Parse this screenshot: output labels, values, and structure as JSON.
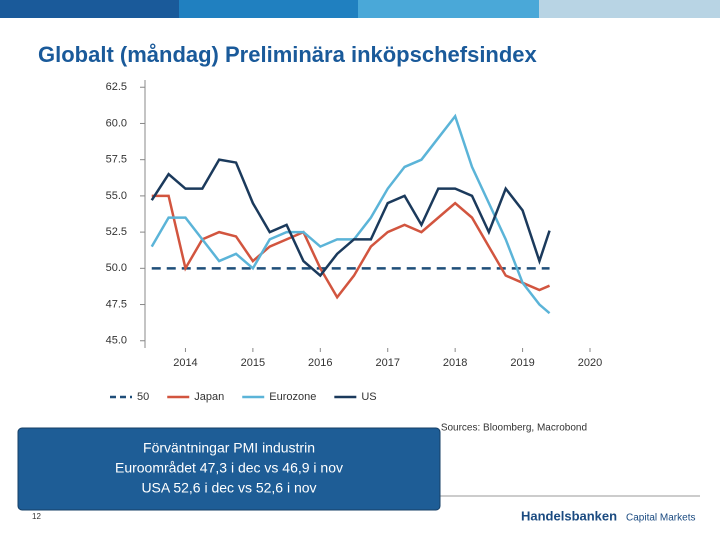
{
  "slide": {
    "title": "Globalt (måndag) Preliminära inköpschefsindex",
    "source": "Sources: Bloomberg, Macrobond",
    "textbox": [
      "Förväntningar PMI industrin",
      "Euroområdet 47,3 i dec vs 46,9 i nov",
      "USA 52,6 i dec vs 52,6 i nov"
    ],
    "page_number": "12",
    "logo": "Handelsbanken",
    "logo_sub": "Capital Markets"
  },
  "chart_data": {
    "type": "line",
    "x": [
      2013.5,
      2013.75,
      2014,
      2014.25,
      2014.5,
      2014.75,
      2015,
      2015.25,
      2015.5,
      2015.75,
      2016,
      2016.25,
      2016.5,
      2016.75,
      2017,
      2017.25,
      2017.5,
      2017.75,
      2018,
      2018.25,
      2018.5,
      2018.75,
      2019,
      2019.25,
      2019.4
    ],
    "xlim": [
      2013.4,
      2020.0
    ],
    "xticks": [
      2014,
      2015,
      2016,
      2017,
      2018,
      2019,
      2020
    ],
    "ylim": [
      44.5,
      63
    ],
    "yticks": [
      {
        "value": 45,
        "label": "45.0"
      },
      47.5,
      {
        "value": 50,
        "label": "50.0"
      },
      52.5,
      {
        "value": 55,
        "label": "55.0"
      },
      57.5,
      {
        "value": 60,
        "label": "60.0"
      },
      62.5
    ],
    "series": [
      {
        "name": "50",
        "color": "#1f4e79",
        "dashed": true,
        "values": [
          50,
          50,
          50,
          50,
          50,
          50,
          50,
          50,
          50,
          50,
          50,
          50,
          50,
          50,
          50,
          50,
          50,
          50,
          50,
          50,
          50,
          50,
          50,
          50,
          50
        ]
      },
      {
        "name": "Japan",
        "color": "#d2553f",
        "values": [
          55,
          55,
          50,
          52,
          52.5,
          52.2,
          50.5,
          51.5,
          52,
          52.5,
          50,
          48,
          49.5,
          51.5,
          52.5,
          53,
          52.5,
          53.5,
          54.5,
          53.5,
          51.5,
          49.5,
          49,
          48.5,
          48.8
        ]
      },
      {
        "name": "Eurozone",
        "color": "#5bb4d8",
        "values": [
          51.5,
          53.5,
          53.5,
          52,
          50.5,
          51,
          50,
          52,
          52.5,
          52.5,
          51.5,
          52,
          52,
          53.5,
          55.5,
          57,
          57.5,
          59,
          60.5,
          57,
          54.5,
          52,
          49,
          47.5,
          46.9
        ]
      },
      {
        "name": "US",
        "color": "#1b3a5c",
        "values": [
          54.7,
          56.5,
          55.5,
          55.5,
          57.5,
          57.3,
          54.5,
          52.5,
          53,
          50.5,
          49.5,
          51,
          52,
          52,
          54.5,
          55,
          53,
          55.5,
          55.5,
          55,
          52.5,
          55.5,
          54,
          50.5,
          52.6
        ]
      }
    ]
  }
}
